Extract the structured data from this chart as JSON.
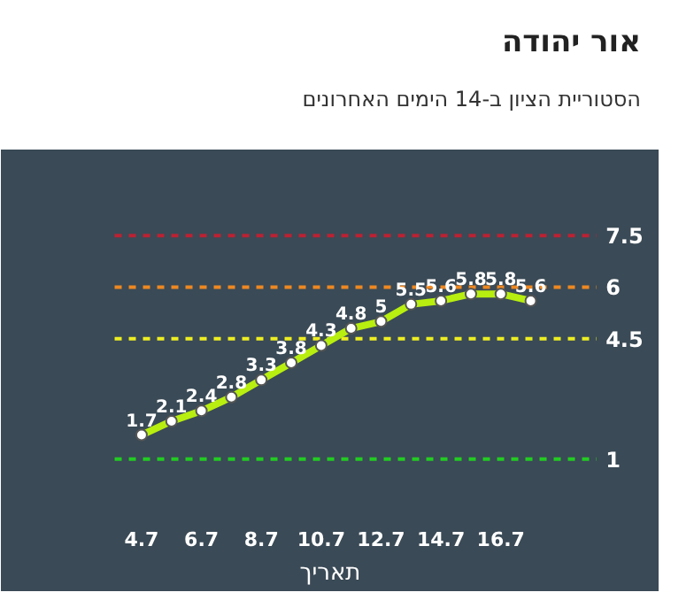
{
  "chart_data": {
    "type": "line",
    "title": "אור יהודה",
    "subtitle": "הסטוריית הציון ב-14 הימים האחרונים",
    "xlabel": "תאריך",
    "categories": [
      "4.7",
      null,
      "6.7",
      null,
      "8.7",
      null,
      "10.7",
      null,
      "12.7",
      null,
      "14.7",
      null,
      "16.7",
      null
    ],
    "series": [
      {
        "color": "#b8ee10",
        "values": [
          1.7,
          2.1,
          2.4,
          2.8,
          3.3,
          3.8,
          4.3,
          4.8,
          5,
          5.5,
          5.6,
          5.8,
          5.8,
          5.6
        ]
      }
    ],
    "ylim": [
      -0.5,
      10
    ],
    "tick_labels": "x",
    "data_labels": true,
    "marker": "circle",
    "line_style": "solid",
    "grid": false,
    "ref_lines": [
      {
        "axis": "y",
        "value": 1,
        "label": "1",
        "color": "#22cc22",
        "line_style": "dashed"
      },
      {
        "axis": "y",
        "value": 4.5,
        "label": "4.5",
        "color": "#eeee22",
        "line_style": "dashed"
      },
      {
        "axis": "y",
        "value": 6,
        "label": "6",
        "color": "#ee8822",
        "line_style": "dashed"
      },
      {
        "axis": "y",
        "value": 7.5,
        "label": "7.5",
        "color": "#bb2233",
        "line_style": "dashed"
      }
    ]
  }
}
